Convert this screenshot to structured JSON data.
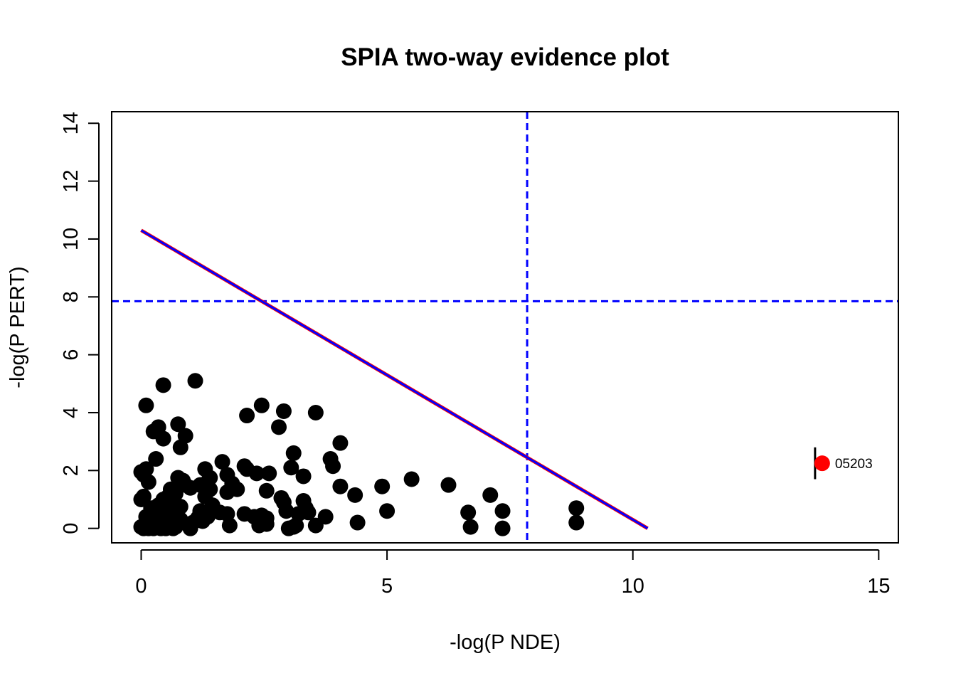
{
  "chart_data": {
    "type": "scatter",
    "title": "SPIA two-way evidence plot",
    "xlabel": "-log(P NDE)",
    "ylabel": "-log(P PERT)",
    "xlim": [
      -0.6,
      15.4
    ],
    "ylim": [
      -0.5,
      14.4
    ],
    "x_ticks": [
      0,
      5,
      10,
      15
    ],
    "y_ticks": [
      0,
      2,
      4,
      6,
      8,
      10,
      12,
      14
    ],
    "grid": false,
    "legend": "none",
    "colors": {
      "points": "#000000",
      "highlight": "#ff0000",
      "threshold_line": "#0000ff",
      "threshold_line_overlay": "#ff0000",
      "axes": "#000000"
    },
    "threshold": {
      "x": 7.85,
      "y": 7.85,
      "style": "dashed"
    },
    "combined_line": {
      "from": [
        0,
        10.3
      ],
      "to": [
        10.3,
        0
      ]
    },
    "series": [
      {
        "values": [
          [
            0.0,
            0.05
          ],
          [
            0.05,
            0.0
          ],
          [
            0.1,
            0.1
          ],
          [
            0.15,
            0.0
          ],
          [
            0.2,
            0.2
          ],
          [
            0.25,
            0.0
          ],
          [
            0.3,
            0.1
          ],
          [
            0.35,
            0.05
          ],
          [
            0.4,
            0.0
          ],
          [
            0.45,
            0.15
          ],
          [
            0.5,
            0.0
          ],
          [
            0.55,
            0.05
          ],
          [
            0.6,
            0.1
          ],
          [
            0.65,
            0.0
          ],
          [
            0.7,
            0.05
          ],
          [
            0.75,
            0.2
          ],
          [
            0.1,
            0.4
          ],
          [
            0.2,
            0.35
          ],
          [
            0.3,
            0.5
          ],
          [
            0.4,
            0.3
          ],
          [
            0.5,
            0.45
          ],
          [
            0.6,
            0.55
          ],
          [
            0.7,
            0.4
          ],
          [
            0.8,
            0.3
          ],
          [
            0.2,
            0.7
          ],
          [
            0.35,
            0.8
          ],
          [
            0.5,
            0.65
          ],
          [
            0.65,
            0.9
          ],
          [
            0.8,
            0.75
          ],
          [
            0.45,
            1.0
          ],
          [
            0.55,
            1.1
          ],
          [
            0.7,
            1.2
          ],
          [
            0.0,
            1.0
          ],
          [
            0.05,
            1.1
          ],
          [
            0.15,
            1.6
          ],
          [
            0.0,
            1.95
          ],
          [
            0.1,
            2.05
          ],
          [
            0.05,
            1.85
          ],
          [
            0.6,
            1.35
          ],
          [
            0.9,
            1.5
          ],
          [
            1.0,
            1.4
          ],
          [
            0.75,
            1.75
          ],
          [
            0.85,
            1.65
          ],
          [
            1.05,
            0.2
          ],
          [
            1.15,
            0.35
          ],
          [
            1.25,
            0.25
          ],
          [
            1.35,
            0.4
          ],
          [
            1.0,
            0.0
          ],
          [
            1.2,
            0.6
          ],
          [
            1.3,
            1.1
          ],
          [
            1.4,
            1.35
          ],
          [
            1.35,
            1.6
          ],
          [
            1.3,
            2.05
          ],
          [
            1.2,
            1.5
          ],
          [
            1.45,
            0.8
          ],
          [
            1.4,
            1.75
          ],
          [
            1.6,
            0.55
          ],
          [
            1.65,
            2.3
          ],
          [
            1.75,
            0.5
          ],
          [
            1.8,
            0.1
          ],
          [
            1.75,
            1.25
          ],
          [
            1.85,
            1.55
          ],
          [
            1.95,
            1.35
          ],
          [
            1.75,
            1.85
          ],
          [
            2.1,
            2.15
          ],
          [
            2.15,
            2.05
          ],
          [
            2.35,
            1.9
          ],
          [
            2.1,
            0.5
          ],
          [
            2.3,
            0.4
          ],
          [
            2.45,
            0.45
          ],
          [
            2.55,
            0.35
          ],
          [
            2.4,
            0.1
          ],
          [
            2.55,
            0.15
          ],
          [
            2.55,
            1.3
          ],
          [
            2.6,
            1.9
          ],
          [
            2.85,
            1.05
          ],
          [
            2.95,
            0.6
          ],
          [
            2.9,
            0.9
          ],
          [
            3.0,
            0.0
          ],
          [
            3.1,
            0.05
          ],
          [
            3.15,
            0.1
          ],
          [
            3.2,
            0.5
          ],
          [
            3.3,
            0.95
          ],
          [
            3.35,
            0.7
          ],
          [
            3.4,
            0.55
          ],
          [
            3.05,
            2.1
          ],
          [
            3.1,
            2.6
          ],
          [
            3.3,
            1.8
          ],
          [
            3.55,
            0.1
          ],
          [
            3.75,
            0.4
          ],
          [
            3.85,
            2.4
          ],
          [
            3.9,
            2.15
          ],
          [
            4.05,
            1.45
          ],
          [
            4.35,
            1.15
          ],
          [
            4.4,
            0.2
          ],
          [
            4.9,
            1.45
          ],
          [
            5.0,
            0.6
          ],
          [
            5.5,
            1.7
          ],
          [
            6.25,
            1.5
          ],
          [
            6.65,
            0.55
          ],
          [
            6.7,
            0.05
          ],
          [
            7.1,
            1.15
          ],
          [
            7.35,
            0.6
          ],
          [
            7.35,
            0.0
          ],
          [
            8.85,
            0.7
          ],
          [
            8.85,
            0.2
          ],
          [
            0.1,
            4.25
          ],
          [
            0.25,
            3.35
          ],
          [
            0.45,
            4.95
          ],
          [
            0.35,
            3.5
          ],
          [
            0.45,
            3.1
          ],
          [
            0.3,
            2.4
          ],
          [
            0.75,
            3.6
          ],
          [
            0.8,
            2.8
          ],
          [
            0.9,
            3.2
          ],
          [
            1.1,
            5.1
          ],
          [
            2.15,
            3.9
          ],
          [
            2.45,
            4.25
          ],
          [
            2.8,
            3.5
          ],
          [
            2.9,
            4.05
          ],
          [
            3.55,
            4.0
          ],
          [
            4.05,
            2.95
          ]
        ]
      },
      {
        "values": [
          [
            13.85,
            2.25
          ]
        ],
        "label": "05203"
      }
    ]
  }
}
